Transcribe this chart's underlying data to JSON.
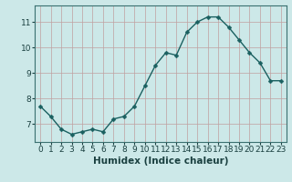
{
  "x": [
    0,
    1,
    2,
    3,
    4,
    5,
    6,
    7,
    8,
    9,
    10,
    11,
    12,
    13,
    14,
    15,
    16,
    17,
    18,
    19,
    20,
    21,
    22,
    23
  ],
  "y": [
    7.7,
    7.3,
    6.8,
    6.6,
    6.7,
    6.8,
    6.7,
    7.2,
    7.3,
    7.7,
    8.5,
    9.3,
    9.8,
    9.7,
    10.6,
    11.0,
    11.2,
    11.2,
    10.8,
    10.3,
    9.8,
    9.4,
    8.7,
    8.7
  ],
  "bg_color": "#cce8e8",
  "grid_color": "#c0a0a0",
  "line_color": "#1a6060",
  "marker_color": "#1a6060",
  "xlabel": "Humidex (Indice chaleur)",
  "yticks": [
    7,
    8,
    9,
    10,
    11
  ],
  "ylim": [
    6.3,
    11.65
  ],
  "xlim": [
    -0.5,
    23.5
  ],
  "xtick_labels": [
    "0",
    "1",
    "2",
    "3",
    "4",
    "5",
    "6",
    "7",
    "8",
    "9",
    "10",
    "11",
    "12",
    "13",
    "14",
    "15",
    "16",
    "17",
    "18",
    "19",
    "20",
    "21",
    "22",
    "23"
  ],
  "font_size": 6.5,
  "xlabel_fontsize": 7.5,
  "line_width": 1.0,
  "marker_size": 2.5
}
